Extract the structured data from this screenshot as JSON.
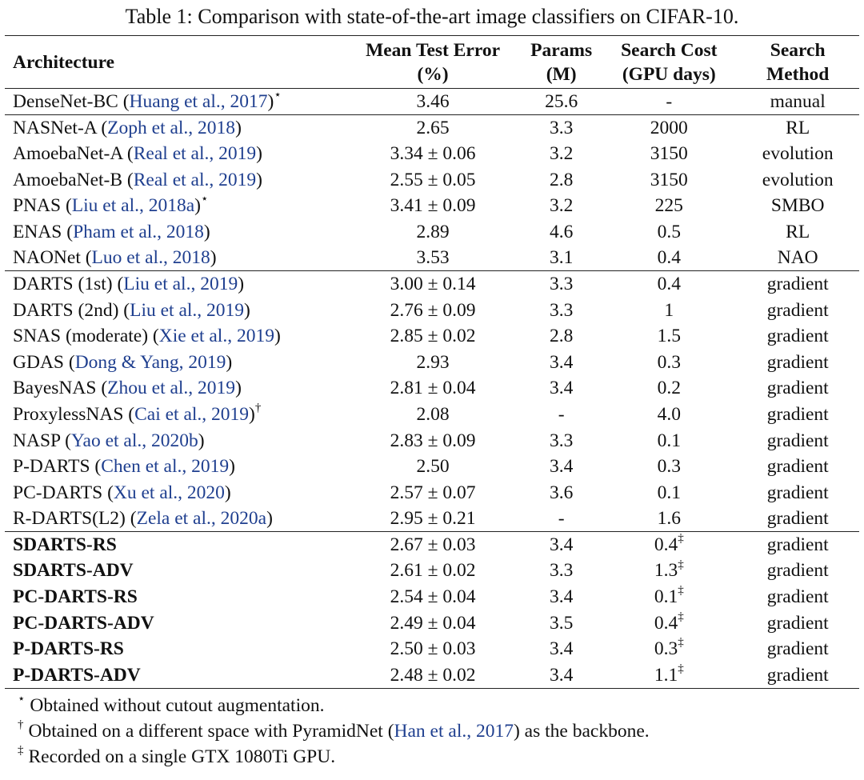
{
  "caption": "Table 1: Comparison with state-of-the-art image classifiers on CIFAR-10.",
  "headers": {
    "architecture": "Architecture",
    "error_line1": "Mean Test Error",
    "error_line2": "(%)",
    "params_line1": "Params",
    "params_line2": "(M)",
    "cost_line1": "Search Cost",
    "cost_line2": "(GPU days)",
    "method_line1": "Search",
    "method_line2": "Method"
  },
  "rows": [
    {
      "name": "DenseNet-BC (",
      "cite": "Huang et al., 2017",
      "tail": ")",
      "mark": "⋆",
      "error": "3.46",
      "params": "25.6",
      "cost": "-",
      "cost_mark": "",
      "method": "manual"
    },
    {
      "name": "NASNet-A (",
      "cite": "Zoph et al., 2018",
      "tail": ")",
      "mark": "",
      "error": "2.65",
      "params": "3.3",
      "cost": "2000",
      "cost_mark": "",
      "method": "RL"
    },
    {
      "name": "AmoebaNet-A (",
      "cite": "Real et al., 2019",
      "tail": ")",
      "mark": "",
      "error": "3.34 ± 0.06",
      "params": "3.2",
      "cost": "3150",
      "cost_mark": "",
      "method": "evolution"
    },
    {
      "name": "AmoebaNet-B (",
      "cite": "Real et al., 2019",
      "tail": ")",
      "mark": "",
      "error": "2.55 ± 0.05",
      "params": "2.8",
      "cost": "3150",
      "cost_mark": "",
      "method": "evolution"
    },
    {
      "name": "PNAS (",
      "cite": "Liu et al., 2018a",
      "tail": ")",
      "mark": "⋆",
      "error": "3.41 ± 0.09",
      "params": "3.2",
      "cost": "225",
      "cost_mark": "",
      "method": "SMBO"
    },
    {
      "name": "ENAS (",
      "cite": "Pham et al., 2018",
      "tail": ")",
      "mark": "",
      "error": "2.89",
      "params": "4.6",
      "cost": "0.5",
      "cost_mark": "",
      "method": "RL"
    },
    {
      "name": "NAONet (",
      "cite": "Luo et al., 2018",
      "tail": ")",
      "mark": "",
      "error": "3.53",
      "params": "3.1",
      "cost": "0.4",
      "cost_mark": "",
      "method": "NAO"
    },
    {
      "name": "DARTS (1st) (",
      "cite": "Liu et al., 2019",
      "tail": ")",
      "mark": "",
      "error": "3.00 ± 0.14",
      "params": "3.3",
      "cost": "0.4",
      "cost_mark": "",
      "method": "gradient"
    },
    {
      "name": "DARTS (2nd) (",
      "cite": "Liu et al., 2019",
      "tail": ")",
      "mark": "",
      "error": "2.76 ± 0.09",
      "params": "3.3",
      "cost": "1",
      "cost_mark": "",
      "method": "gradient"
    },
    {
      "name": "SNAS (moderate) (",
      "cite": "Xie et al., 2019",
      "tail": ")",
      "mark": "",
      "error": "2.85 ± 0.02",
      "params": "2.8",
      "cost": "1.5",
      "cost_mark": "",
      "method": "gradient"
    },
    {
      "name": "GDAS (",
      "cite": "Dong & Yang, 2019",
      "tail": ")",
      "mark": "",
      "error": "2.93",
      "params": "3.4",
      "cost": "0.3",
      "cost_mark": "",
      "method": "gradient"
    },
    {
      "name": "BayesNAS (",
      "cite": "Zhou et al., 2019",
      "tail": ")",
      "mark": "",
      "error": "2.81 ± 0.04",
      "params": "3.4",
      "cost": "0.2",
      "cost_mark": "",
      "method": "gradient"
    },
    {
      "name": "ProxylessNAS (",
      "cite": "Cai et al., 2019",
      "tail": ")",
      "mark": "†",
      "error": "2.08",
      "params": "-",
      "cost": "4.0",
      "cost_mark": "",
      "method": "gradient"
    },
    {
      "name": "NASP (",
      "cite": "Yao et al., 2020b",
      "tail": ")",
      "mark": "",
      "error": "2.83 ± 0.09",
      "params": "3.3",
      "cost": "0.1",
      "cost_mark": "",
      "method": "gradient"
    },
    {
      "name": "P-DARTS (",
      "cite": "Chen et al., 2019",
      "tail": ")",
      "mark": "",
      "error": "2.50",
      "params": "3.4",
      "cost": "0.3",
      "cost_mark": "",
      "method": "gradient"
    },
    {
      "name": "PC-DARTS (",
      "cite": "Xu et al., 2020",
      "tail": ")",
      "mark": "",
      "error": "2.57 ± 0.07",
      "params": "3.6",
      "cost": "0.1",
      "cost_mark": "",
      "method": "gradient"
    },
    {
      "name": "R-DARTS(L2) (",
      "cite": "Zela et al., 2020a",
      "tail": ")",
      "mark": "",
      "error": "2.95 ± 0.21",
      "params": "-",
      "cost": "1.6",
      "cost_mark": "",
      "method": "gradient"
    },
    {
      "name": "SDARTS-RS",
      "cite": "",
      "tail": "",
      "mark": "",
      "error": "2.67 ± 0.03",
      "params": "3.4",
      "cost": "0.4",
      "cost_mark": "‡",
      "method": "gradient"
    },
    {
      "name": "SDARTS-ADV",
      "cite": "",
      "tail": "",
      "mark": "",
      "error": "2.61 ± 0.02",
      "params": "3.3",
      "cost": "1.3",
      "cost_mark": "‡",
      "method": "gradient"
    },
    {
      "name": "PC-DARTS-RS",
      "cite": "",
      "tail": "",
      "mark": "",
      "error": "2.54 ± 0.04",
      "params": "3.4",
      "cost": "0.1",
      "cost_mark": "‡",
      "method": "gradient"
    },
    {
      "name": "PC-DARTS-ADV",
      "cite": "",
      "tail": "",
      "mark": "",
      "error": "2.49 ± 0.04",
      "params": "3.5",
      "cost": "0.4",
      "cost_mark": "‡",
      "method": "gradient"
    },
    {
      "name": "P-DARTS-RS",
      "cite": "",
      "tail": "",
      "mark": "",
      "error": "2.50 ± 0.03",
      "params": "3.4",
      "cost": "0.3",
      "cost_mark": "‡",
      "method": "gradient"
    },
    {
      "name": "P-DARTS-ADV",
      "cite": "",
      "tail": "",
      "mark": "",
      "error": "2.48 ± 0.02",
      "params": "3.4",
      "cost": "1.1",
      "cost_mark": "‡",
      "method": "gradient"
    }
  ],
  "notes": [
    {
      "mark": "⋆",
      "text": "Obtained without cutout augmentation.",
      "cite": "",
      "tail": ""
    },
    {
      "mark": "†",
      "text": "Obtained on a different space with PyramidNet (",
      "cite": "Han et al., 2017",
      "tail": ") as the backbone."
    },
    {
      "mark": "‡",
      "text": "Recorded on a single GTX 1080Ti GPU.",
      "cite": "",
      "tail": ""
    }
  ]
}
